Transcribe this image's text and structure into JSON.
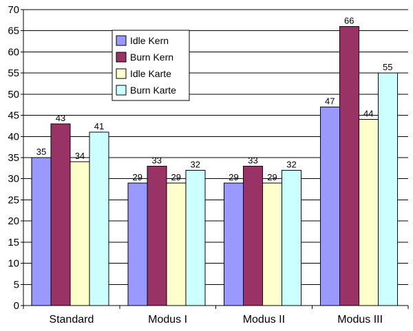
{
  "chart_data": {
    "type": "bar",
    "categories": [
      "Standard",
      "Modus I",
      "Modus II",
      "Modus III"
    ],
    "series": [
      {
        "name": "Idle Kern",
        "color": "#9999ff",
        "values": [
          35,
          29,
          29,
          47
        ]
      },
      {
        "name": "Burn Kern",
        "color": "#993366",
        "values": [
          43,
          33,
          33,
          66
        ]
      },
      {
        "name": "Idle Karte",
        "color": "#ffffcc",
        "values": [
          34,
          29,
          29,
          44
        ]
      },
      {
        "name": "Burn Karte",
        "color": "#ccffff",
        "values": [
          41,
          32,
          32,
          55
        ]
      }
    ],
    "title": "",
    "xlabel": "",
    "ylabel": "",
    "ylim": [
      0,
      70
    ],
    "yticks": [
      0,
      5,
      10,
      15,
      20,
      25,
      30,
      35,
      40,
      45,
      50,
      55,
      60,
      65,
      70
    ],
    "grid": true,
    "legend": "top-left",
    "data_labels": true
  }
}
